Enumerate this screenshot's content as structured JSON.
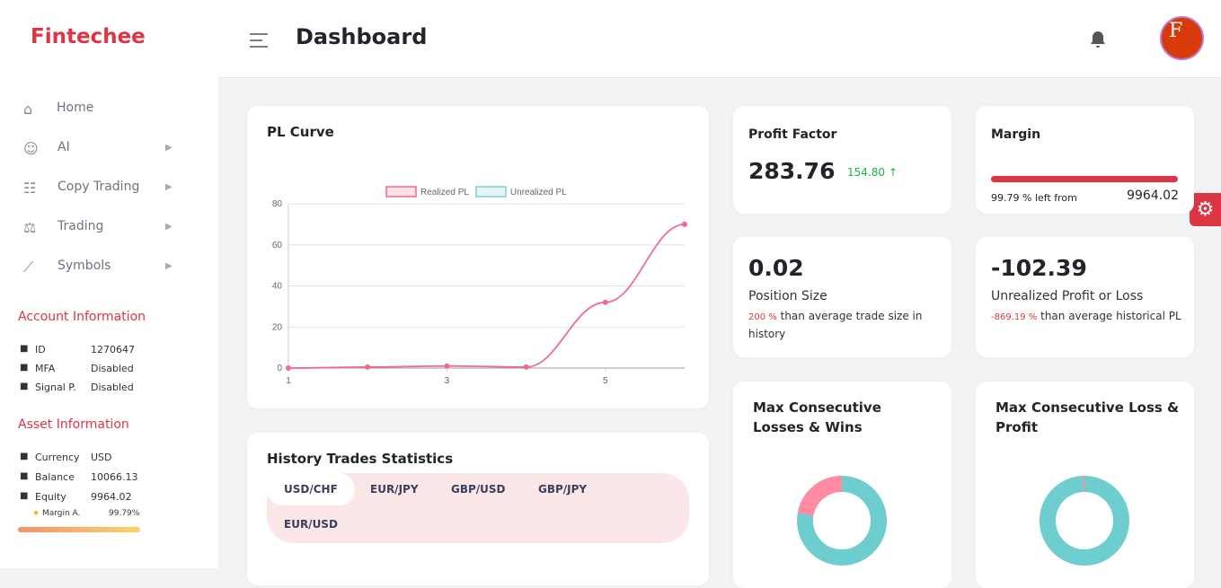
{
  "brand": "Fintechee",
  "header": {
    "title": "Dashboard",
    "avatar": "F"
  },
  "nav": [
    "Home",
    "AI",
    "Copy Trading",
    "Trading",
    "Symbols"
  ],
  "account": {
    "title": "Account Information",
    "rows": [
      [
        "ID",
        "1270647"
      ],
      [
        "MFA",
        "Disabled"
      ],
      [
        "Signal P.",
        "Disabled"
      ]
    ]
  },
  "asset": {
    "title": "Asset Information",
    "rows": [
      [
        "Currency",
        "USD"
      ],
      [
        "Balance",
        "10066.13"
      ],
      [
        "Equity",
        "9964.02"
      ]
    ],
    "margin_label": "Margin A.",
    "margin": {
      "value": 99.79,
      "label": "99.79%"
    }
  },
  "profit_factor": {
    "title": "Profit Factor",
    "value": "283.76",
    "change": "154.80"
  },
  "margin_card": {
    "title": "Margin",
    "percent": 99.79,
    "percent_text": "% left from",
    "amount": "9964.02"
  },
  "position": {
    "value": "0.02",
    "title": "Position Size",
    "percent": "200 %",
    "text": "than average trade size in history"
  },
  "unrealized": {
    "value": "-102.39",
    "title": "Unrealized Profit or Loss",
    "percent": "-869.19 %",
    "text": "than average historical PL"
  },
  "history": {
    "title": "History Trades Statistics",
    "tabs": [
      "USD/CHF",
      "EUR/JPY",
      "GBP/USD",
      "GBP/JPY",
      "EUR/USD"
    ]
  },
  "chart_data": [
    {
      "type": "line",
      "title": "PL Curve",
      "x": [
        1,
        2,
        3,
        4,
        5,
        6
      ],
      "xlim": [
        1,
        6
      ],
      "xticks": [
        1,
        3,
        5
      ],
      "ylim": [
        0,
        80
      ],
      "yticks": [
        0,
        20,
        40,
        60,
        80
      ],
      "grid": true,
      "series": [
        {
          "name": "Realized PL",
          "color": "#f06b8a",
          "values": [
            0,
            0.5,
            1,
            0.5,
            32,
            70
          ]
        },
        {
          "name": "Unrealized PL",
          "color": "#7fcfcf",
          "values": [
            null,
            null,
            null,
            null,
            null,
            null
          ]
        }
      ]
    },
    {
      "type": "donut",
      "title": "Max Consecutive Losses & Wins",
      "categories": [
        null,
        null
      ],
      "values": [
        7,
        2
      ],
      "colors": [
        "#6ecdce",
        "#ff8aa2"
      ]
    },
    {
      "type": "donut",
      "title": "Max Consecutive Loss & Profit",
      "categories": [
        null,
        null
      ],
      "values": [
        150,
        1
      ],
      "colors": [
        "#6ecdce",
        "#ff8aa2"
      ]
    }
  ]
}
